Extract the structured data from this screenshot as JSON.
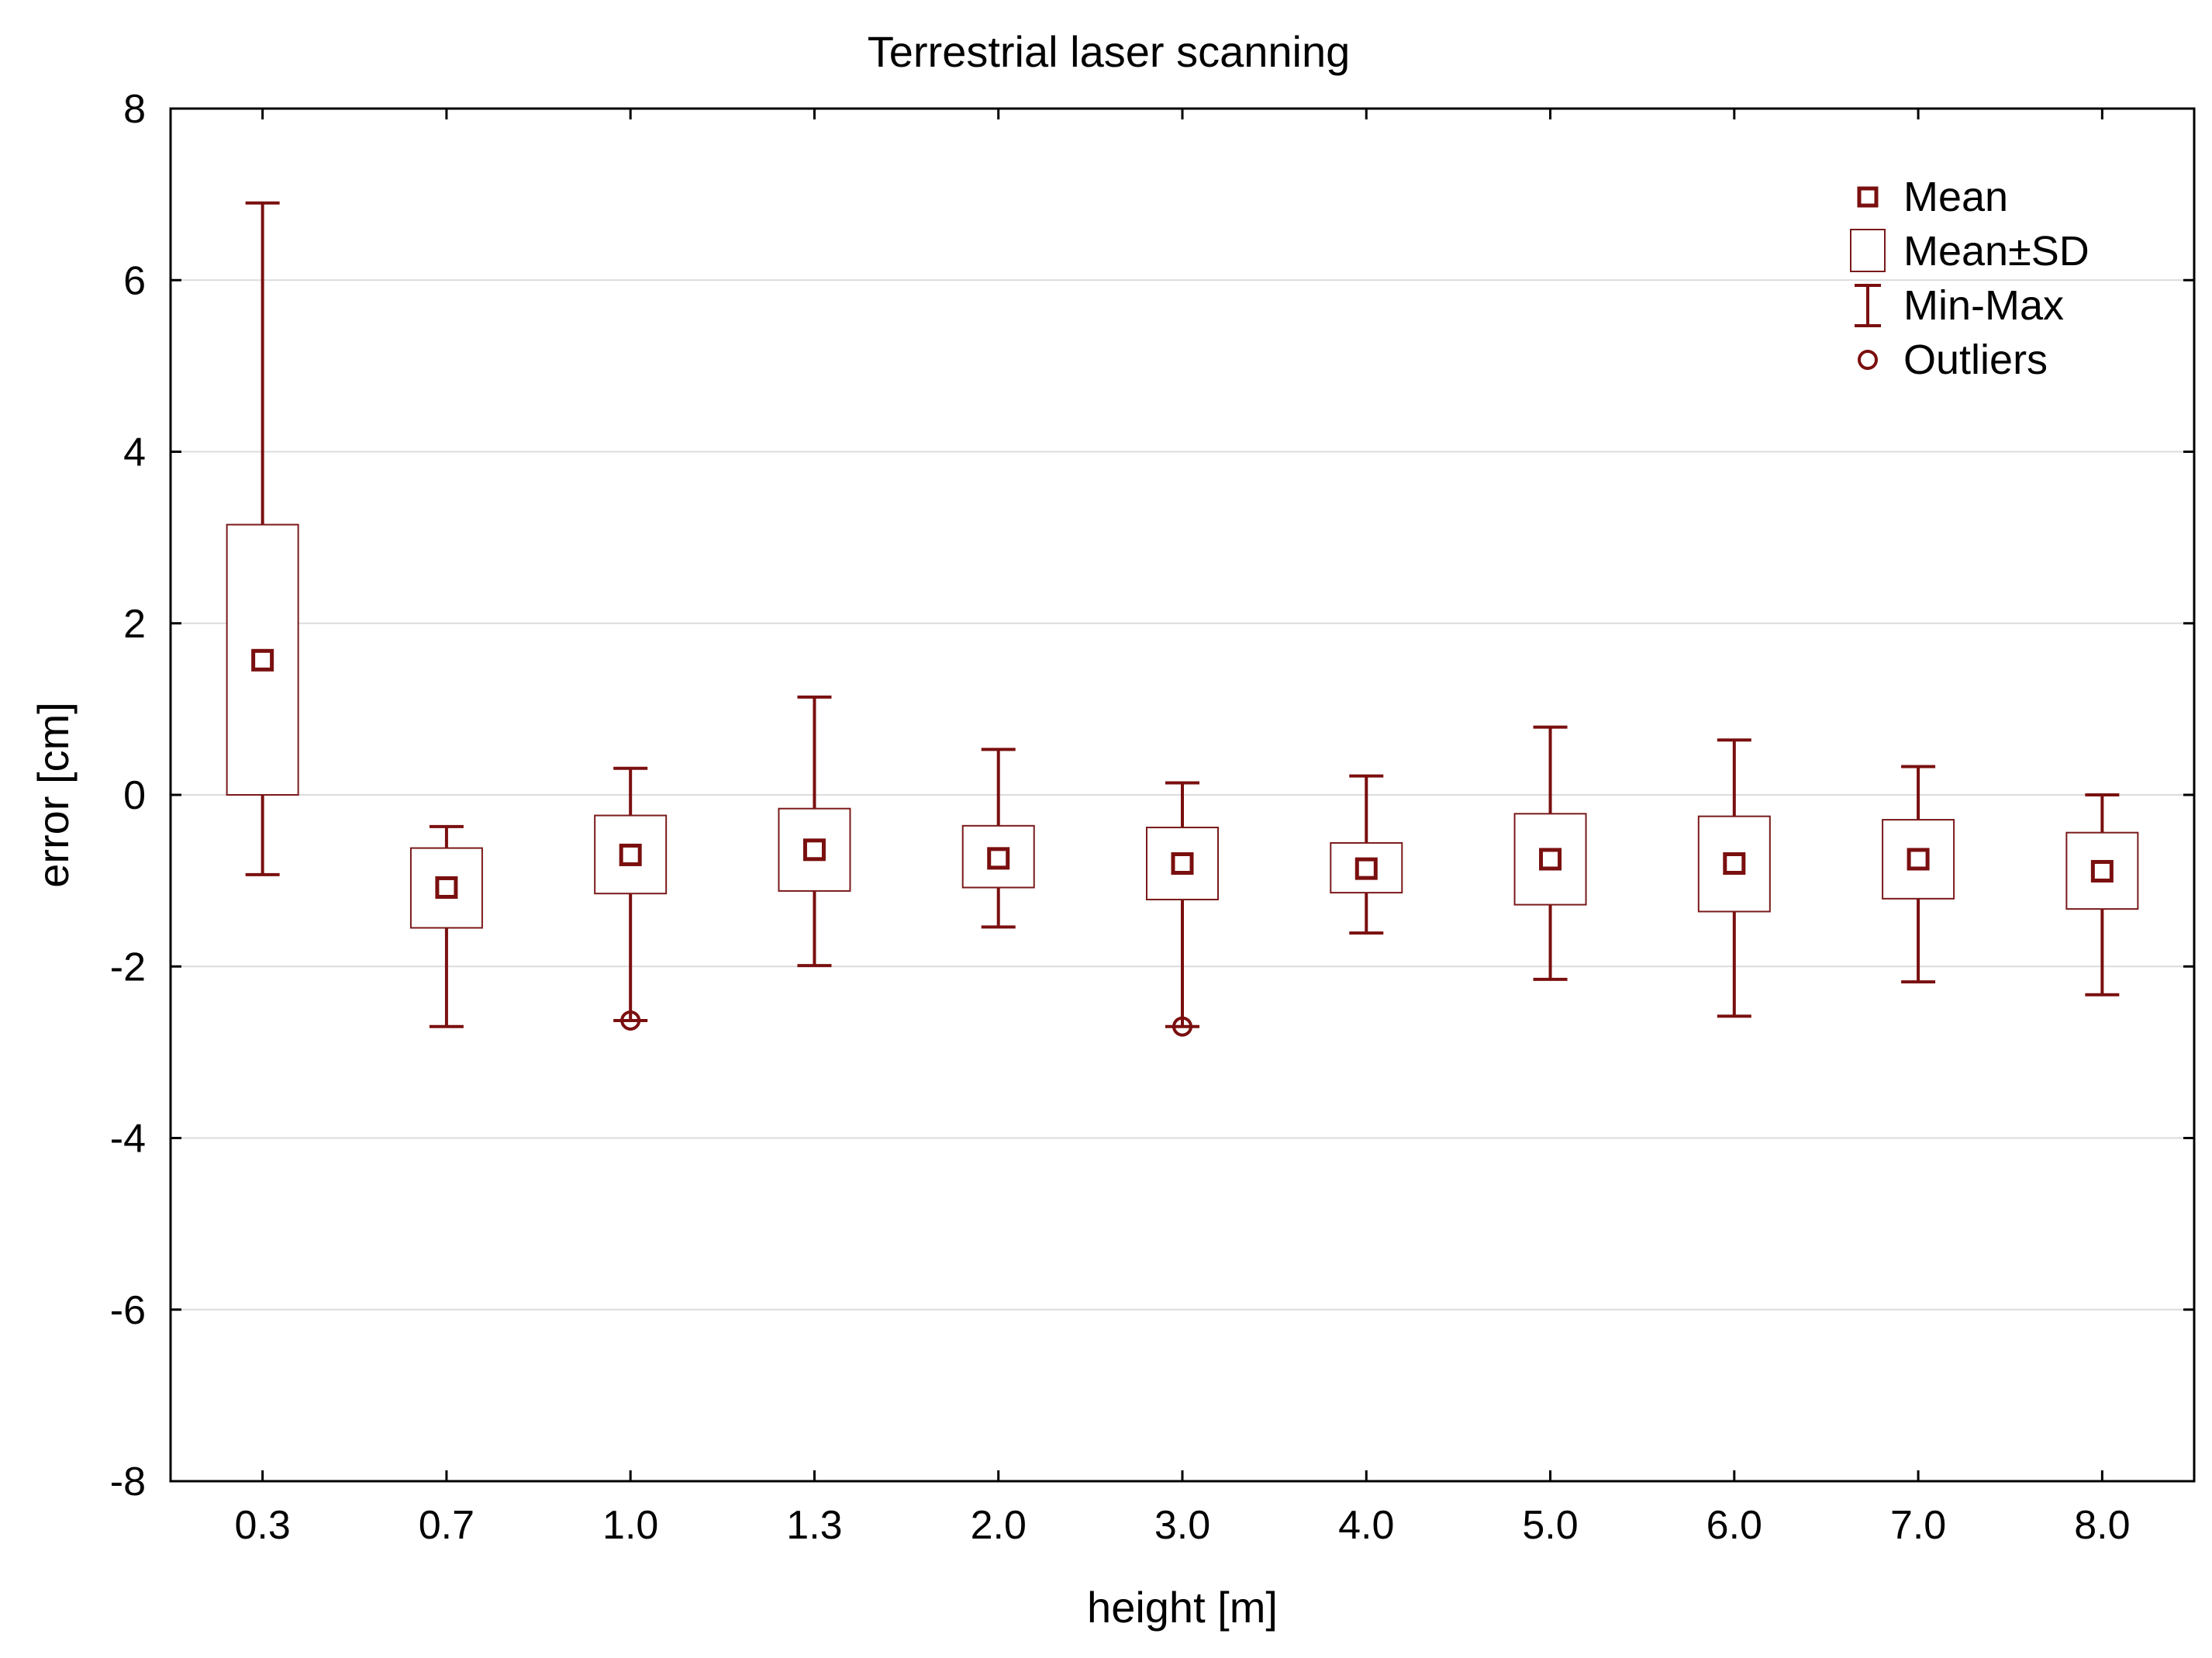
{
  "chart_data": {
    "type": "boxplot",
    "title": "Terrestrial laser scanning",
    "xlabel": "height [m]",
    "ylabel": "error [cm]",
    "ylim": [
      -8,
      8
    ],
    "yticks": [
      "8",
      "6",
      "4",
      "2",
      "0",
      "-2",
      "-4",
      "-6",
      "-8"
    ],
    "categories": [
      "0.3",
      "0.7",
      "1.0",
      "1.3",
      "2.0",
      "3.0",
      "4.0",
      "5.0",
      "6.0",
      "7.0",
      "8.0"
    ],
    "grid": true,
    "legend_position": "top-right",
    "legend": [
      "Mean",
      "Mean±SD",
      "Min-Max",
      "Outliers"
    ],
    "series": [
      {
        "name": "Mean",
        "values": [
          1.57,
          -1.08,
          -0.7,
          -0.64,
          -0.74,
          -0.8,
          -0.86,
          -0.75,
          -0.8,
          -0.75,
          -0.89
        ]
      },
      {
        "name": "Mean+SD",
        "values": [
          3.15,
          -0.62,
          -0.24,
          -0.16,
          -0.36,
          -0.38,
          -0.56,
          -0.22,
          -0.25,
          -0.29,
          -0.44
        ]
      },
      {
        "name": "Mean-SD",
        "values": [
          0.0,
          -1.55,
          -1.15,
          -1.12,
          -1.08,
          -1.22,
          -1.14,
          -1.28,
          -1.36,
          -1.21,
          -1.33
        ]
      },
      {
        "name": "Max",
        "values": [
          6.9,
          -0.37,
          0.31,
          1.14,
          0.53,
          0.14,
          0.22,
          0.79,
          0.64,
          0.33,
          0.0
        ]
      },
      {
        "name": "Min",
        "values": [
          -0.93,
          -2.7,
          -2.63,
          -1.99,
          -1.54,
          -2.7,
          -1.61,
          -2.15,
          -2.58,
          -2.18,
          -2.33
        ]
      }
    ],
    "outliers": [
      {
        "category": "1.0",
        "value": -2.63
      },
      {
        "category": "3.0",
        "value": -2.7
      }
    ],
    "colors": {
      "mark": "#7a0f0f",
      "box_edge": "#7a1a1a",
      "grid": "#dcdcdc",
      "frame": "#000000"
    }
  }
}
